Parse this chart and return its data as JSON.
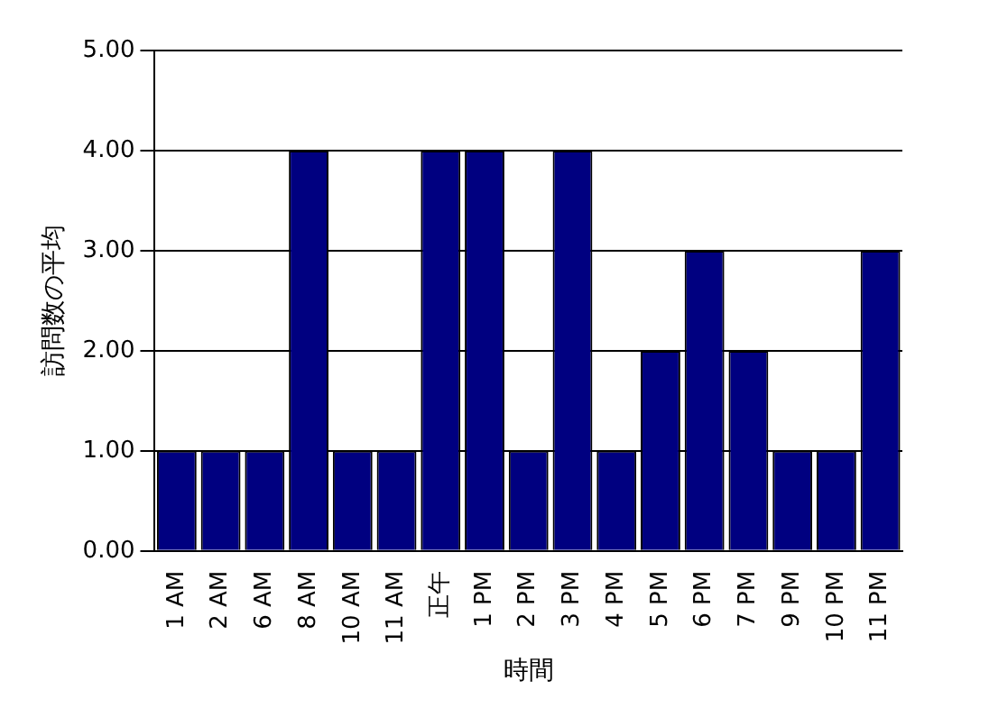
{
  "chart_data": {
    "type": "bar",
    "xlabel": "時間",
    "ylabel": "訪問数の平均",
    "categories": [
      "1 AM",
      "2 AM",
      "6 AM",
      "8 AM",
      "10 AM",
      "11 AM",
      "正午",
      "1 PM",
      "2 PM",
      "3 PM",
      "4 PM",
      "5 PM",
      "6 PM",
      "7 PM",
      "9 PM",
      "10 PM",
      "11 PM"
    ],
    "values": [
      1,
      1,
      1,
      4,
      1,
      1,
      4,
      4,
      1,
      4,
      1,
      2,
      3,
      2,
      1,
      1,
      3
    ],
    "color": "#000080",
    "ylim": [
      0,
      5
    ],
    "yticks": [
      {
        "value": 0,
        "label": "0.00"
      },
      {
        "value": 1,
        "label": "1.00"
      },
      {
        "value": 2,
        "label": "2.00"
      },
      {
        "value": 3,
        "label": "3.00"
      },
      {
        "value": 4,
        "label": "4.00"
      },
      {
        "value": 5,
        "label": "5.00"
      }
    ],
    "grid": "y"
  }
}
